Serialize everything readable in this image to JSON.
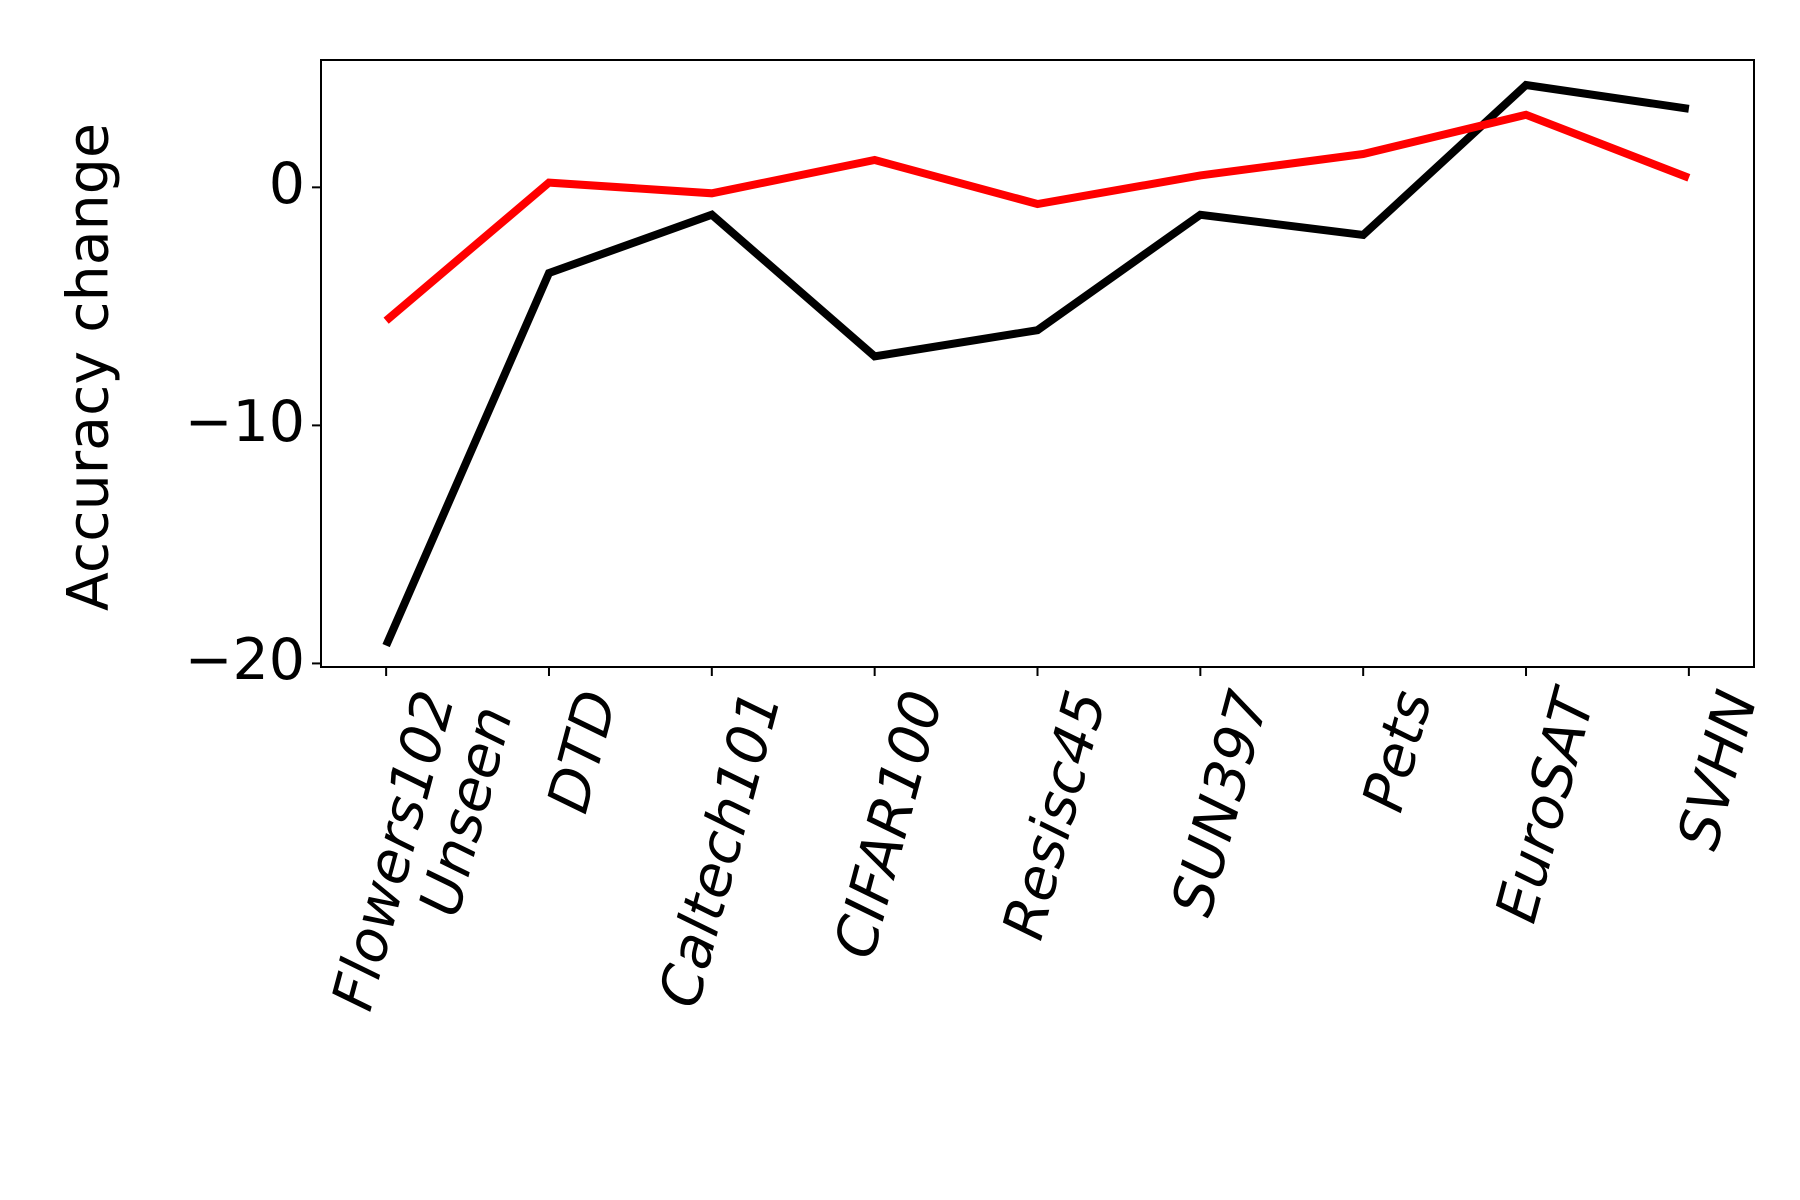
{
  "chart_data": {
    "type": "line",
    "y_label": "Accuracy change",
    "categories": [
      "Flowers102\nUnseen",
      "DTD",
      "Caltech101",
      "CIFAR100",
      "Resisc45",
      "SUN397",
      "Pets",
      "EuroSAT",
      "SVHN"
    ],
    "series": [
      {
        "color": "#000000",
        "values": [
          -19.25,
          -3.6,
          -1.15,
          -7.1,
          -6.0,
          -1.15,
          -2.0,
          4.3,
          3.3
        ]
      },
      {
        "color": "#ff0000",
        "values": [
          -5.6,
          0.2,
          -0.25,
          1.15,
          -0.7,
          0.5,
          1.4,
          3.05,
          0.4
        ]
      }
    ],
    "ylim": [
      -20.15,
      5.35
    ],
    "yticks": [
      {
        "value": -20,
        "label": "−20"
      },
      {
        "value": -10,
        "label": "−10"
      },
      0
    ],
    "grid": false
  }
}
